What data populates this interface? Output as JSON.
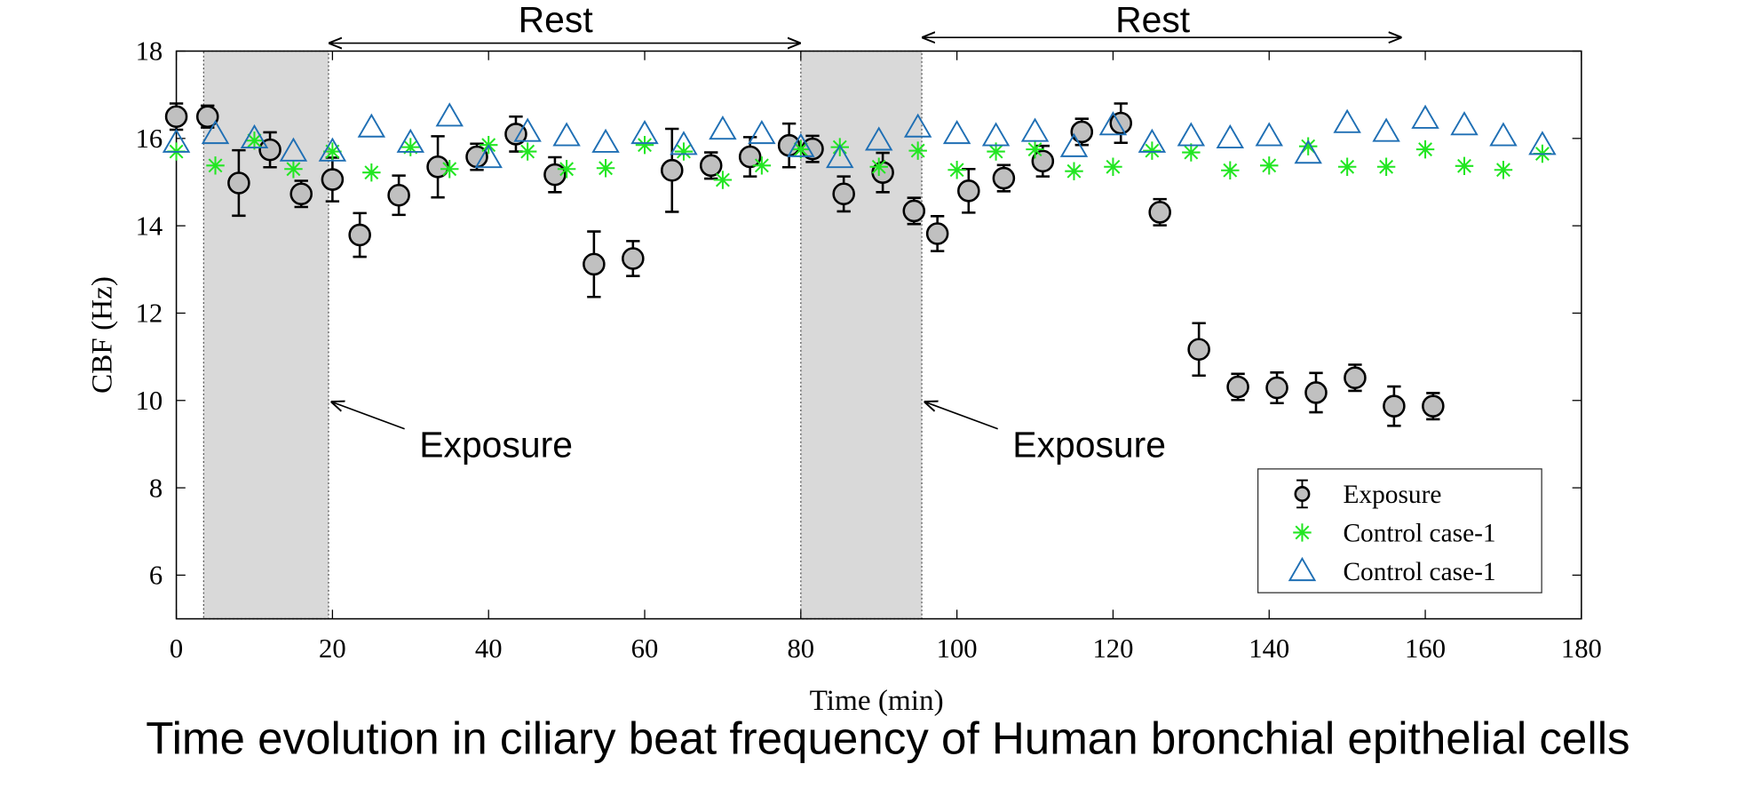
{
  "chart_data": {
    "type": "scatter",
    "title": "Time evolution in ciliary beat frequency of Human bronchial epithelial cells",
    "x_label": "Time (min)",
    "y_label": "CBF (Hz)",
    "xlim": [
      0,
      180
    ],
    "xticks": [
      0,
      20,
      40,
      60,
      80,
      100,
      120,
      140,
      160,
      180
    ],
    "ylim": [
      5,
      18
    ],
    "yticks": [
      6,
      8,
      10,
      12,
      14,
      16,
      18
    ],
    "legend": "lower right",
    "spans": [
      [
        3.5,
        19.5
      ],
      [
        80,
        95.5
      ]
    ],
    "range_annotations": [
      {
        "text": "Rest",
        "x": [
          19.5,
          80
        ]
      },
      {
        "text": "Rest",
        "x": [
          95.5,
          157
        ]
      }
    ],
    "point_annotations": [
      {
        "text": "Exposure",
        "x": 19.5,
        "y": 10
      },
      {
        "text": "Exposure",
        "x": 95.5,
        "y": 10
      }
    ],
    "series": [
      {
        "name": "Exposure",
        "marker": "circle",
        "color": "#000000",
        "x": [
          0,
          4,
          8,
          12,
          16,
          20,
          23.5,
          28.5,
          33.5,
          38.5,
          43.5,
          48.5,
          53.5,
          58.5,
          63.5,
          68.5,
          73.5,
          78.5,
          81.5,
          85.5,
          90.5,
          94.5,
          97.5,
          101.5,
          106,
          111,
          116,
          121,
          126,
          131,
          136,
          141,
          146,
          151,
          156,
          161
        ],
        "values": [
          16.5,
          16.5,
          14.98,
          15.74,
          14.73,
          15.06,
          13.79,
          14.7,
          15.35,
          15.58,
          16.1,
          15.17,
          13.12,
          13.25,
          15.27,
          15.38,
          15.58,
          15.84,
          15.76,
          14.73,
          15.22,
          14.34,
          13.82,
          14.8,
          15.09,
          15.48,
          16.15,
          16.35,
          14.31,
          11.17,
          10.31,
          10.29,
          10.18,
          10.52,
          9.87,
          9.87
        ],
        "errors": [
          0.3,
          0.25,
          0.75,
          0.4,
          0.3,
          0.5,
          0.5,
          0.45,
          0.7,
          0.3,
          0.4,
          0.4,
          0.75,
          0.4,
          0.95,
          0.3,
          0.45,
          0.5,
          0.3,
          0.4,
          0.45,
          0.3,
          0.4,
          0.5,
          0.3,
          0.35,
          0.3,
          0.45,
          0.3,
          0.6,
          0.3,
          0.35,
          0.45,
          0.3,
          0.45,
          0.3
        ]
      },
      {
        "name": "Control case-1",
        "marker": "star",
        "color": "#22e622",
        "x": [
          0,
          5,
          10,
          15,
          20,
          25,
          30,
          35,
          40,
          45,
          50,
          55,
          60,
          65,
          70,
          75,
          80,
          85,
          90,
          95,
          100,
          105,
          110,
          115,
          120,
          125,
          130,
          135,
          140,
          145,
          150,
          155,
          160,
          165,
          170,
          175
        ],
        "values": [
          15.7,
          15.38,
          15.95,
          15.3,
          15.7,
          15.22,
          15.8,
          15.3,
          15.85,
          15.7,
          15.3,
          15.32,
          15.85,
          15.7,
          15.05,
          15.38,
          15.75,
          15.8,
          15.35,
          15.72,
          15.28,
          15.7,
          15.75,
          15.25,
          15.35,
          15.72,
          15.68,
          15.27,
          15.38,
          15.82,
          15.35,
          15.35,
          15.75,
          15.37,
          15.28,
          15.65
        ]
      },
      {
        "name": "Control case-1",
        "marker": "triangle",
        "color": "#1f6fb4",
        "x": [
          0,
          5,
          10,
          15,
          20,
          25,
          30,
          35,
          40,
          45,
          50,
          55,
          60,
          65,
          70,
          75,
          80,
          85,
          90,
          95,
          100,
          105,
          110,
          115,
          120,
          125,
          130,
          135,
          140,
          145,
          150,
          155,
          160,
          165,
          170,
          175
        ],
        "values": [
          15.9,
          16.1,
          16.0,
          15.7,
          15.7,
          16.25,
          15.9,
          16.5,
          15.55,
          16.15,
          16.05,
          15.9,
          16.1,
          15.85,
          16.2,
          16.1,
          15.8,
          15.55,
          15.95,
          16.25,
          16.1,
          16.05,
          16.15,
          15.8,
          16.3,
          15.9,
          16.05,
          16.0,
          16.05,
          15.65,
          16.35,
          16.15,
          16.45,
          16.3,
          16.05,
          15.85
        ]
      }
    ]
  }
}
